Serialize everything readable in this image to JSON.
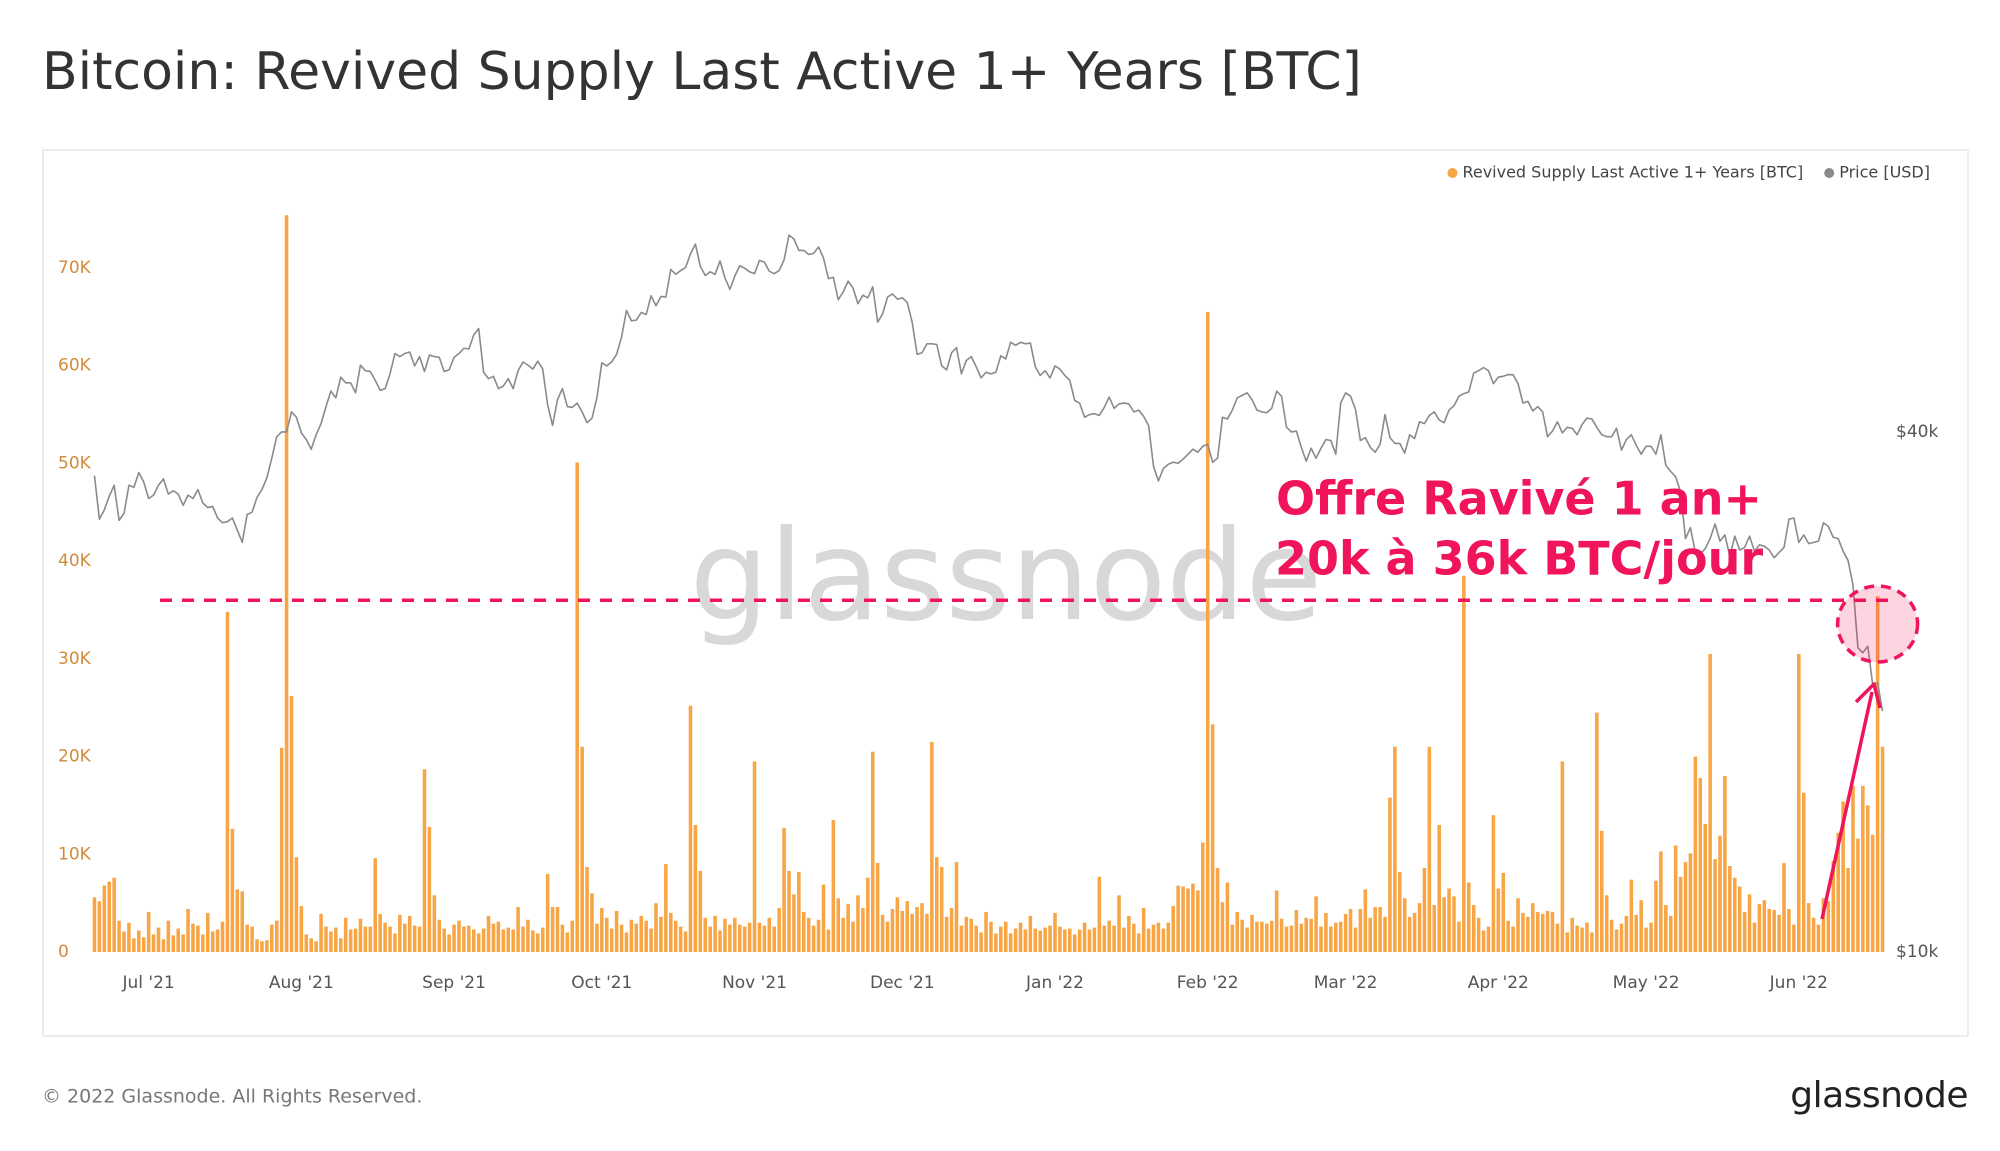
{
  "chart_data": {
    "type": "bar",
    "title": "Bitcoin: Revived Supply Last Active 1+ Years [BTC]",
    "legend": "top-right",
    "grid": true,
    "y2_log": true,
    "ylim": [
      0,
      79000
    ],
    "yticks": [
      0,
      {
        "value": 10000,
        "label": "10K"
      },
      {
        "value": 20000,
        "label": "20K"
      },
      {
        "value": 30000,
        "label": "30K"
      },
      {
        "value": 40000,
        "label": "40K"
      },
      {
        "value": 50000,
        "label": "50K"
      },
      {
        "value": 60000,
        "label": "60K"
      },
      {
        "value": 70000,
        "label": "70K"
      }
    ],
    "y2lim": [
      10000,
      78300
    ],
    "y2ticks": [
      {
        "value": 10000,
        "label": "$10k"
      },
      {
        "value": 40000,
        "label": "$40k"
      }
    ],
    "watermark": "glassnode",
    "footer": "© 2022 Glassnode. All Rights Reserved.",
    "logo": "glassnode",
    "annotations": {
      "lines": [
        "Offre Ravivé 1 an+",
        "20k à 36k BTC/jour"
      ],
      "threshold": 36000,
      "color": "#f0145a"
    },
    "categories": [
      null,
      null,
      null,
      null,
      null,
      null,
      null,
      null,
      null,
      null,
      null,
      "Jul '21",
      null,
      null,
      null,
      null,
      null,
      null,
      null,
      null,
      null,
      null,
      null,
      null,
      null,
      null,
      null,
      null,
      null,
      null,
      null,
      null,
      null,
      null,
      null,
      null,
      null,
      null,
      null,
      null,
      null,
      null,
      "Aug '21",
      null,
      null,
      null,
      null,
      null,
      null,
      null,
      null,
      null,
      null,
      null,
      null,
      null,
      null,
      null,
      null,
      null,
      null,
      null,
      null,
      null,
      null,
      null,
      null,
      null,
      null,
      null,
      null,
      null,
      null,
      "Sep '21",
      null,
      null,
      null,
      null,
      null,
      null,
      null,
      null,
      null,
      null,
      null,
      null,
      null,
      null,
      null,
      null,
      null,
      null,
      null,
      null,
      null,
      null,
      null,
      null,
      null,
      null,
      null,
      null,
      null,
      "Oct '21",
      null,
      null,
      null,
      null,
      null,
      null,
      null,
      null,
      null,
      null,
      null,
      null,
      null,
      null,
      null,
      null,
      null,
      null,
      null,
      null,
      null,
      null,
      null,
      null,
      null,
      null,
      null,
      null,
      null,
      null,
      "Nov '21",
      null,
      null,
      null,
      null,
      null,
      null,
      null,
      null,
      null,
      null,
      null,
      null,
      null,
      null,
      null,
      null,
      null,
      null,
      null,
      null,
      null,
      null,
      null,
      null,
      null,
      null,
      null,
      null,
      null,
      "Dec '21",
      null,
      null,
      null,
      null,
      null,
      null,
      null,
      null,
      null,
      null,
      null,
      null,
      null,
      null,
      null,
      null,
      null,
      null,
      null,
      null,
      null,
      null,
      null,
      null,
      null,
      null,
      null,
      null,
      null,
      null,
      "Jan '22",
      null,
      null,
      null,
      null,
      null,
      null,
      null,
      null,
      null,
      null,
      null,
      null,
      null,
      null,
      null,
      null,
      null,
      null,
      null,
      null,
      null,
      null,
      null,
      null,
      null,
      null,
      null,
      null,
      null,
      null,
      "Feb '22",
      null,
      null,
      null,
      null,
      null,
      null,
      null,
      null,
      null,
      null,
      null,
      null,
      null,
      null,
      null,
      null,
      null,
      null,
      null,
      null,
      null,
      null,
      null,
      null,
      null,
      null,
      null,
      "Mar '22",
      null,
      null,
      null,
      null,
      null,
      null,
      null,
      null,
      null,
      null,
      null,
      null,
      null,
      null,
      null,
      null,
      null,
      null,
      null,
      null,
      null,
      null,
      null,
      null,
      null,
      null,
      null,
      null,
      null,
      null,
      "Apr '22",
      null,
      null,
      null,
      null,
      null,
      null,
      null,
      null,
      null,
      null,
      null,
      null,
      null,
      null,
      null,
      null,
      null,
      null,
      null,
      null,
      null,
      null,
      null,
      null,
      null,
      null,
      null,
      null,
      null,
      "May '22",
      null,
      null,
      null,
      null,
      null,
      null,
      null,
      null,
      null,
      null,
      null,
      null,
      null,
      null,
      null,
      null,
      null,
      null,
      null,
      null,
      null,
      null,
      null,
      null,
      null,
      null,
      null,
      null,
      null,
      null,
      "Jun '22",
      null,
      null,
      null,
      null,
      null,
      null,
      null,
      null,
      null,
      null,
      null,
      null,
      null,
      null,
      null,
      null,
      null
    ],
    "series": [
      {
        "name": "Revived Supply Last Active 1+ Years [BTC]",
        "color": "#f7a545",
        "type": "bar",
        "values": [
          5600,
          5200,
          6800,
          7200,
          7600,
          3200,
          2100,
          3000,
          1400,
          2200,
          1500,
          4100,
          1800,
          2500,
          1300,
          3200,
          1700,
          2400,
          1800,
          4400,
          2900,
          2700,
          1800,
          4000,
          2100,
          2300,
          3100,
          34800,
          12600,
          6400,
          6200,
          2800,
          2600,
          1300,
          1100,
          1200,
          2800,
          3200,
          20900,
          75400,
          26200,
          9700,
          4700,
          1800,
          1400,
          1100,
          3900,
          2600,
          2100,
          2500,
          1400,
          3500,
          2300,
          2400,
          3400,
          2600,
          2600,
          9600,
          3900,
          3000,
          2600,
          1900,
          3800,
          2900,
          3700,
          2700,
          2600,
          18700,
          12800,
          5800,
          3300,
          2400,
          1800,
          2800,
          3200,
          2600,
          2700,
          2300,
          1900,
          2400,
          3700,
          2900,
          3100,
          2300,
          2500,
          2300,
          4600,
          2600,
          3300,
          2200,
          1900,
          2500,
          8000,
          4600,
          4600,
          2800,
          2000,
          3200,
          50100,
          21000,
          8700,
          6000,
          2900,
          4500,
          3500,
          2400,
          4200,
          2800,
          2000,
          3300,
          2900,
          3700,
          3200,
          2400,
          5000,
          3600,
          9000,
          4000,
          3200,
          2600,
          2100,
          25200,
          13000,
          8300,
          3500,
          2600,
          3700,
          2200,
          3400,
          2800,
          3500,
          2800,
          2600,
          3000,
          19500,
          3000,
          2700,
          3500,
          2600,
          4500,
          12700,
          8300,
          5900,
          8200,
          4100,
          3500,
          2700,
          3300,
          6900,
          2300,
          13500,
          5500,
          3500,
          4900,
          3100,
          5800,
          4500,
          7600,
          20500,
          9100,
          3800,
          3100,
          4400,
          5600,
          4200,
          5200,
          3900,
          4600,
          5000,
          3900,
          21500,
          9700,
          8700,
          3600,
          4500,
          9200,
          2700,
          3600,
          3400,
          2700,
          2000,
          4100,
          3100,
          1900,
          2600,
          3100,
          1900,
          2400,
          3000,
          2300,
          3700,
          2400,
          2200,
          2500,
          2700,
          4000,
          2600,
          2300,
          2400,
          1800,
          2300,
          3000,
          2300,
          2500,
          7700,
          2700,
          3200,
          2700,
          5800,
          2500,
          3700,
          2900,
          1900,
          4500,
          2400,
          2800,
          3000,
          2400,
          3000,
          4700,
          6800,
          6700,
          6500,
          7000,
          6300,
          11200,
          65500,
          23300,
          8600,
          5100,
          7100,
          2800,
          4100,
          3300,
          2500,
          3800,
          3100,
          3100,
          2900,
          3200,
          6300,
          3400,
          2600,
          2700,
          4300,
          2900,
          3500,
          3400,
          5700,
          2600,
          4000,
          2600,
          3000,
          3100,
          3900,
          4400,
          2500,
          4400,
          6400,
          3500,
          4600,
          4600,
          3600,
          15800,
          21000,
          8200,
          5500,
          3600,
          4000,
          5000,
          8600,
          21000,
          4800,
          13000,
          5600,
          6500,
          5700,
          3100,
          38500,
          7100,
          4800,
          3500,
          2200,
          2600,
          14000,
          6500,
          8100,
          3200,
          2600,
          5500,
          4000,
          3600,
          5000,
          4100,
          3900,
          4200,
          4100,
          2900,
          19500,
          2000,
          3500,
          2700,
          2500,
          3000,
          2000,
          24500,
          12400,
          5800,
          3300,
          2300,
          2900,
          3700,
          7400,
          3800,
          5300,
          2500,
          3000,
          7300,
          10300,
          4800,
          3700,
          10900,
          7700,
          9200,
          10100,
          20000,
          17800,
          13100,
          30500,
          9500,
          11900,
          18000,
          8800,
          7600,
          6700,
          4100,
          5900,
          3000,
          4900,
          5300,
          4400,
          4300,
          3800,
          9100,
          4400,
          2800,
          30500,
          16300,
          5000,
          3500,
          2800,
          5500,
          5200,
          9300,
          12200,
          15400,
          8600,
          17000,
          11600,
          17000,
          15000,
          12000,
          36400,
          21000
        ]
      },
      {
        "name": "Price [USD]",
        "color": "#8a8a8a",
        "type": "line",
        "axis": "y2",
        "values": [
          35600,
          31700,
          32500,
          33700,
          34700,
          31600,
          32200,
          34700,
          34500,
          35900,
          35000,
          33500,
          33800,
          34700,
          35300,
          33900,
          34200,
          33900,
          32900,
          33800,
          33500,
          34300,
          33100,
          32700,
          32800,
          31800,
          31400,
          31500,
          31800,
          30800,
          29800,
          32100,
          32300,
          33600,
          34300,
          35400,
          37300,
          39500,
          40000,
          40000,
          42200,
          41600,
          39900,
          39200,
          38200,
          39700,
          40900,
          42800,
          44600,
          43800,
          46300,
          45600,
          45600,
          44400,
          47800,
          47100,
          47000,
          45900,
          44700,
          44900,
          46700,
          49300,
          48900,
          49300,
          49500,
          47700,
          48900,
          47000,
          49100,
          48900,
          48800,
          47000,
          47200,
          48800,
          49300,
          50000,
          49900,
          51800,
          52700,
          46900,
          46100,
          46400,
          44900,
          45200,
          46100,
          44900,
          47100,
          48200,
          47800,
          47300,
          48300,
          47300,
          43000,
          40700,
          43600,
          44900,
          42800,
          42700,
          43200,
          42200,
          41000,
          41500,
          43800,
          48100,
          47700,
          48200,
          49200,
          51500,
          55300,
          53800,
          53900,
          55000,
          54700,
          57500,
          56000,
          57400,
          57300,
          61700,
          60900,
          61500,
          62000,
          64300,
          66000,
          62200,
          60700,
          61300,
          60900,
          63100,
          60300,
          58500,
          60600,
          62300,
          61900,
          61300,
          61000,
          63200,
          62900,
          61400,
          61000,
          61500,
          63300,
          67600,
          66900,
          64900,
          64900,
          64200,
          64400,
          65500,
          63600,
          60200,
          60400,
          56900,
          58100,
          59800,
          58700,
          56300,
          57600,
          57200,
          58900,
          53600,
          54800,
          57300,
          57800,
          57000,
          57200,
          56500,
          53600,
          49200,
          49400,
          50600,
          50600,
          50500,
          47700,
          47200,
          49400,
          50100,
          46700,
          48400,
          48900,
          47600,
          46200,
          46900,
          46700,
          46900,
          49000,
          48600,
          50800,
          50400,
          50800,
          50600,
          50700,
          47600,
          46500,
          47100,
          46200,
          47700,
          47300,
          46500,
          45900,
          43500,
          43200,
          41600,
          41900,
          42000,
          41800,
          42700,
          43900,
          42600,
          43100,
          43200,
          43100,
          42200,
          42400,
          41700,
          40700,
          36500,
          35100,
          36300,
          36700,
          36900,
          36800,
          37200,
          37700,
          38200,
          37900,
          38500,
          38700,
          36900,
          37300,
          41600,
          41400,
          42400,
          43800,
          44100,
          44400,
          43600,
          42400,
          42200,
          42100,
          42600,
          44600,
          44000,
          40500,
          40000,
          40100,
          38400,
          37000,
          38300,
          37300,
          38300,
          39200,
          39100,
          37700,
          43200,
          44400,
          44000,
          42500,
          39100,
          39400,
          38400,
          37900,
          38700,
          41900,
          39400,
          38800,
          38800,
          37800,
          39700,
          39300,
          41100,
          40900,
          41800,
          42200,
          41300,
          41000,
          42400,
          42900,
          44000,
          44300,
          44500,
          46800,
          47100,
          47500,
          47100,
          45500,
          46300,
          46400,
          46600,
          46600,
          45500,
          43200,
          43400,
          42300,
          42800,
          42200,
          39500,
          40100,
          41100,
          39900,
          40500,
          40400,
          39700,
          40800,
          41500,
          41400,
          40500,
          39700,
          39500,
          39500,
          40400,
          38100,
          39200,
          39700,
          38600,
          37700,
          38500,
          38500,
          37700,
          39700,
          36600,
          36000,
          35500,
          34100,
          30100,
          31000,
          29000,
          28900,
          29300,
          30100,
          31300,
          29900,
          30400,
          28700,
          30300,
          29200,
          29400,
          30300,
          29100,
          29600,
          29500,
          29200,
          28600,
          29000,
          29400,
          31700,
          31800,
          29800,
          30400,
          29700,
          29800,
          29900,
          31400,
          31100,
          30200,
          30100,
          29100,
          28400,
          26600,
          22500,
          22200,
          22600,
          20400,
          20500,
          19000
        ]
      }
    ]
  }
}
